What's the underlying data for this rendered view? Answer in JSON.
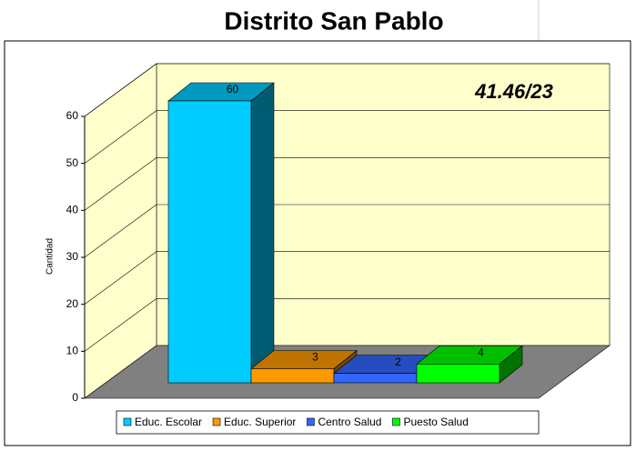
{
  "chart_data": {
    "type": "bar",
    "title": "Distrito San Pablo",
    "annotation": "41.46/23",
    "y_label": "Cantidad",
    "ylim": [
      0,
      60
    ],
    "yticks": [
      0,
      10,
      20,
      30,
      40,
      50,
      60
    ],
    "grid": true,
    "legend": "bottom",
    "series": [
      {
        "name": "Educ. Escolar",
        "color": "#00ccff",
        "values": [
          60
        ]
      },
      {
        "name": "Educ. Superior",
        "color": "#ff9900",
        "values": [
          3
        ]
      },
      {
        "name": "Centro Salud",
        "color": "#3366ff",
        "values": [
          2
        ]
      },
      {
        "name": "Puesto Salud",
        "color": "#00ff00",
        "values": [
          4
        ]
      }
    ]
  }
}
